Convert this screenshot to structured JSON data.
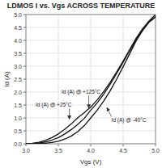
{
  "chart_data": {
    "type": "line",
    "title": "LDMOS I vs. Vgs ACROSS TEMPERATURE",
    "xlabel": "Vgs (V)",
    "ylabel": "Id (A)",
    "x": [
      3.0,
      3.1,
      3.2,
      3.3,
      3.4,
      3.5,
      3.6,
      3.7,
      3.8,
      3.9,
      4.0,
      4.1,
      4.2,
      4.3,
      4.4,
      4.5,
      4.6,
      4.7,
      4.8,
      4.9,
      5.0
    ],
    "series": [
      {
        "color": "#111111",
        "values": [
          0.0,
          0.0,
          0.01,
          0.02,
          0.05,
          0.1,
          0.18,
          0.3,
          0.47,
          0.7,
          1.0,
          1.3,
          1.65,
          2.05,
          2.5,
          2.98,
          3.48,
          3.98,
          4.38,
          4.7,
          4.9
        ]
      },
      {
        "color": "#111111",
        "values": [
          0.0,
          0.01,
          0.03,
          0.07,
          0.14,
          0.24,
          0.38,
          0.55,
          0.75,
          0.98,
          1.3,
          1.58,
          1.92,
          2.3,
          2.72,
          3.15,
          3.6,
          4.02,
          4.4,
          4.72,
          4.92
        ]
      },
      {
        "color": "#111111",
        "values": [
          0.0,
          0.02,
          0.06,
          0.13,
          0.24,
          0.38,
          0.56,
          0.77,
          1.01,
          1.2,
          1.42,
          1.7,
          2.02,
          2.38,
          2.78,
          3.2,
          3.64,
          4.08,
          4.45,
          4.75,
          5.0
        ]
      }
    ],
    "annotations": [
      {
        "text": "Id (A) @ +125°C",
        "x": 3.97,
        "y": 1.38,
        "text_x": 3.55,
        "text_y": 2.02
      },
      {
        "text": "Id (A) @ +25°C",
        "x": 3.67,
        "y": 0.95,
        "text_x": 3.15,
        "text_y": 1.52
      },
      {
        "text": "Id (A) @ -40°C",
        "x": 4.25,
        "y": 1.4,
        "text_x": 4.32,
        "text_y": 0.92
      }
    ],
    "xlim": [
      3.0,
      5.0
    ],
    "ylim": [
      0,
      5.0
    ],
    "xticks": [
      {
        "value": 3.0,
        "label": "3.0"
      },
      3.5,
      {
        "value": 4.0,
        "label": "4.0"
      },
      4.5,
      {
        "value": 5.0,
        "label": "5.0"
      }
    ],
    "yticks": [
      {
        "value": 0,
        "label": "0.0"
      },
      0.5,
      {
        "value": 1.0,
        "label": "1.0"
      },
      1.5,
      {
        "value": 2.0,
        "label": "2.0"
      },
      2.5,
      {
        "value": 3.0,
        "label": "3.0"
      },
      3.5,
      {
        "value": 4.0,
        "label": "4.0"
      },
      4.5,
      {
        "value": 5.0,
        "label": "5.0"
      }
    ],
    "grid": true
  }
}
